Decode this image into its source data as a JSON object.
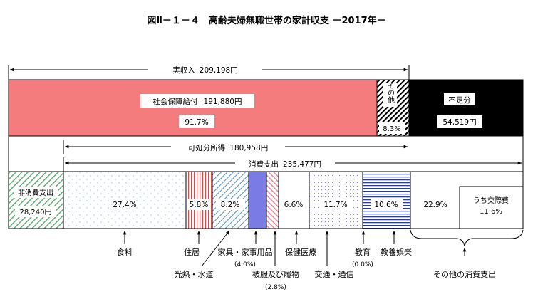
{
  "title": "図Ⅱ－１－４　高齢夫婦無職世帯の家計収支 －2017年－",
  "chart_data": {
    "type": "bar",
    "title": "図Ⅱ－１－４　高齢夫婦無職世帯の家計収支 －2017年－",
    "income": {
      "label": "実収入",
      "value": "209,198円",
      "segments": [
        {
          "name": "社会保障給付",
          "value": "191,880円",
          "percent": "91.7%",
          "color": "#f47c7c"
        },
        {
          "name": "その他",
          "percent": "8.3%",
          "pattern": "hatch"
        }
      ]
    },
    "shortfall": {
      "name": "不足分",
      "value": "54,519円",
      "color": "#000000"
    },
    "disposable_income": {
      "label": "可処分所得",
      "value": "180,958円"
    },
    "consumption": {
      "label": "消費支出",
      "value": "235,477円"
    },
    "non_consumption": {
      "name": "非消費支出",
      "value": "28,240円",
      "pattern": "green-hatch"
    },
    "expense_segments": [
      {
        "id": "food",
        "percent": "27.4%",
        "label": "食料",
        "pattern": "dots"
      },
      {
        "id": "housing",
        "percent": "5.8%",
        "label": "住居",
        "pattern": "red-vertical"
      },
      {
        "id": "utilities",
        "percent": "8.2%",
        "label": "光熱・水道",
        "pattern": "blue-diagonal"
      },
      {
        "id": "furniture",
        "percent": "",
        "label": "家具・家事用品",
        "sub": "(4.0%)",
        "color": "#7b7be6"
      },
      {
        "id": "clothing",
        "percent": "",
        "label": "被服及び履物",
        "sub": "(2.8%)",
        "pattern": "pink-diagonal"
      },
      {
        "id": "medical",
        "percent": "6.6%",
        "label": "保健医療",
        "color": "#ffffff"
      },
      {
        "id": "transport",
        "percent": "11.7%",
        "label": "交通・通信",
        "pattern": "fine-dots"
      },
      {
        "id": "education",
        "percent": "",
        "label": "教育",
        "sub": "(0.0%)"
      },
      {
        "id": "recreation",
        "percent": "10.6%",
        "label": "教養娯楽",
        "pattern": "navy-horizontal"
      },
      {
        "id": "other",
        "percent": "22.9%",
        "label": "その他の消費支出",
        "color": "#ffffff"
      }
    ],
    "social_expense": {
      "name": "うち交際費",
      "percent": "11.6%"
    }
  }
}
